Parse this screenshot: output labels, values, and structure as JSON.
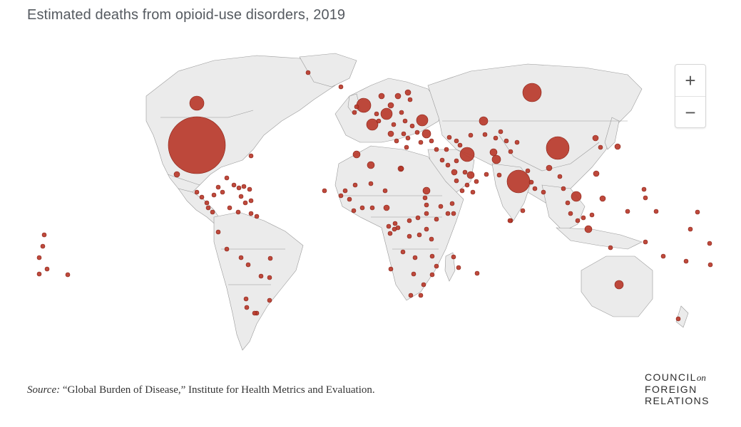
{
  "title": "Estimated deaths from opioid-use disorders, 2019",
  "zoom": {
    "in_label": "+",
    "out_label": "−"
  },
  "source": {
    "label": "Source:",
    "text": "“Global Burden of Disease,” Institute for Health Metrics and Evaluation."
  },
  "logo": {
    "line1": "COUNCIL",
    "on": "on",
    "line2": "FOREIGN",
    "line3": "RELATIONS"
  },
  "colors": {
    "land": "#ebebeb",
    "border": "#9a9a9a",
    "bubble": "#b83a2b",
    "bubble_stroke": "#8a2216"
  }
}
